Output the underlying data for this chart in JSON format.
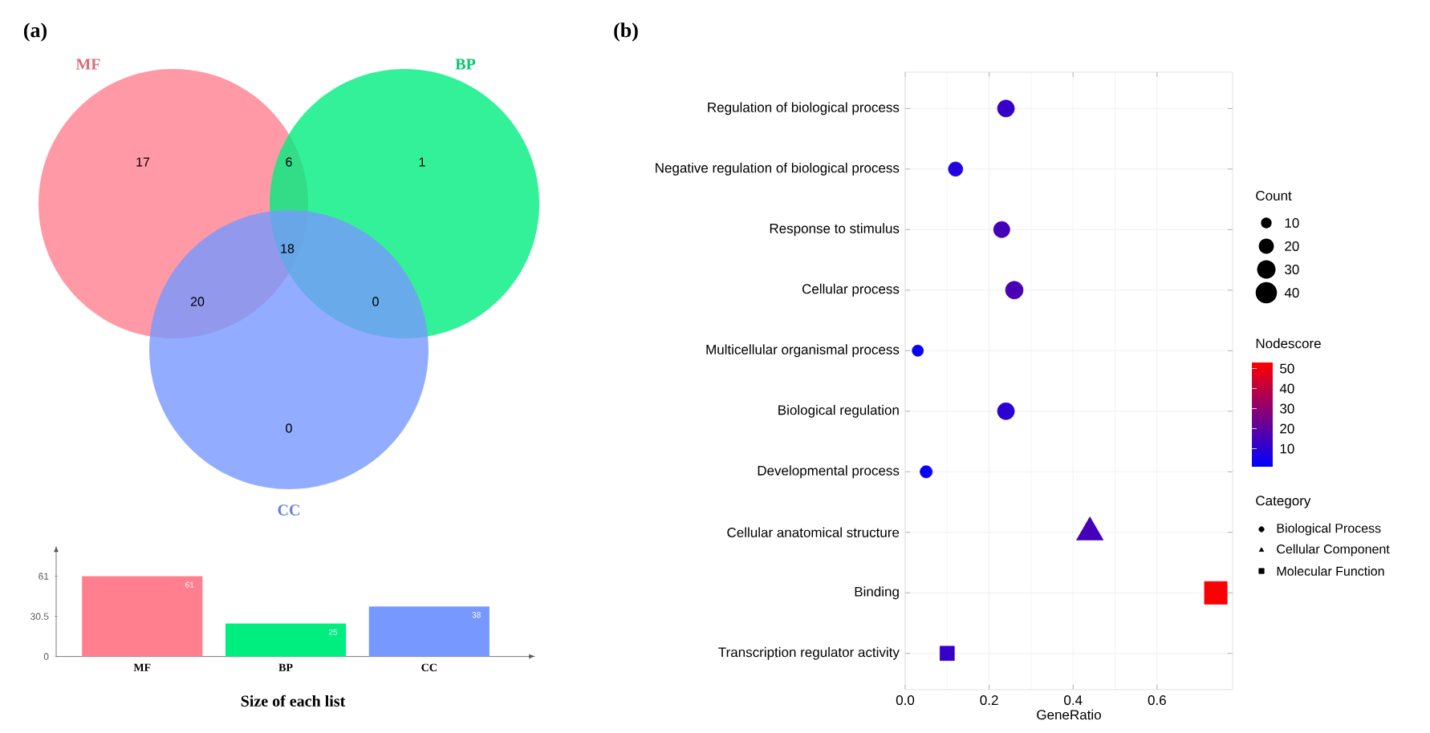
{
  "chart_data": [
    {
      "type": "other",
      "title": "(a)",
      "categories": [
        "MF",
        "BP",
        "CC"
      ],
      "colors": [
        "#ff7f8e",
        "#00ee7f",
        "#7799ff"
      ],
      "annotations": [
        "17",
        "6",
        "1",
        "18",
        "20",
        "0",
        "0"
      ]
    },
    {
      "type": "bar",
      "xlabel": "Size of each list",
      "categories": [
        "MF",
        "BP",
        "CC"
      ],
      "values": [
        61,
        25,
        38
      ],
      "colors": [
        "#ff7f8e",
        "#00ee7f",
        "#7799ff"
      ],
      "ylim": [
        0,
        80
      ],
      "yticks": [
        0,
        30.5,
        61
      ],
      "data_labels": true
    },
    {
      "type": "bubble",
      "title": "(b)",
      "xlabel": "GeneRatio",
      "orientation": "horizontal",
      "categories": [
        "Regulation of biological process",
        "Negative regulation of biological process",
        "Response to stimulus",
        "Cellular process",
        "Multicellular organismal process",
        "Biological regulation",
        "Developmental process",
        "Cellular anatomical structure",
        "Binding",
        "Transcription regulator activity"
      ],
      "series": [
        {
          "name": "Biological Process",
          "marker": "circle",
          "values": [
            0.24,
            0.12,
            0.23,
            0.26,
            0.03,
            0.24,
            0.05,
            null,
            null,
            null
          ],
          "sizes": [
            25,
            18,
            23,
            27,
            11,
            25,
            13,
            null,
            null,
            null
          ],
          "cvalues": [
            12,
            8,
            15,
            16,
            3,
            10,
            3,
            null,
            null,
            null
          ],
          "colors": [
            "#3600c9",
            "#2200dd",
            "#4500ba",
            "#4a00b5",
            "#0a00f5",
            "#2c00d3",
            "#0a00f5",
            null,
            null,
            null
          ]
        },
        {
          "name": "Cellular Component",
          "marker": "triangle",
          "values": [
            null,
            null,
            null,
            null,
            null,
            null,
            null,
            0.44,
            null,
            null
          ],
          "sizes": [
            null,
            null,
            null,
            null,
            null,
            null,
            null,
            27,
            null,
            null
          ],
          "cvalues": [
            null,
            null,
            null,
            null,
            null,
            null,
            null,
            15,
            null,
            null
          ],
          "colors": [
            null,
            null,
            null,
            null,
            null,
            null,
            null,
            "#4500ba",
            null,
            null
          ]
        },
        {
          "name": "Molecular Function",
          "marker": "square",
          "values": [
            null,
            null,
            null,
            null,
            null,
            null,
            null,
            null,
            0.74,
            0.1
          ],
          "sizes": [
            null,
            null,
            null,
            null,
            null,
            null,
            null,
            null,
            45,
            18
          ],
          "cvalues": [
            null,
            null,
            null,
            null,
            null,
            null,
            null,
            null,
            52,
            12
          ],
          "colors": [
            null,
            null,
            null,
            null,
            null,
            null,
            null,
            null,
            "#fa0005",
            "#3600c9"
          ]
        }
      ],
      "xlim": [
        0,
        0.78
      ],
      "xticks": [
        {
          "value": 0,
          "label": "0.0"
        },
        {
          "value": 0.2,
          "label": "0.2"
        },
        {
          "value": 0.4,
          "label": "0.4"
        },
        {
          "value": 0.6,
          "label": "0.6"
        }
      ],
      "size_legend": [
        10,
        20,
        30,
        40
      ],
      "clabel": "Nodescore",
      "clim": [
        1,
        53
      ],
      "cticks": [
        10,
        20,
        30,
        40,
        50
      ],
      "legend_title": "Category",
      "annotations": [
        "Count"
      ],
      "legend": "right",
      "grid": true
    }
  ]
}
